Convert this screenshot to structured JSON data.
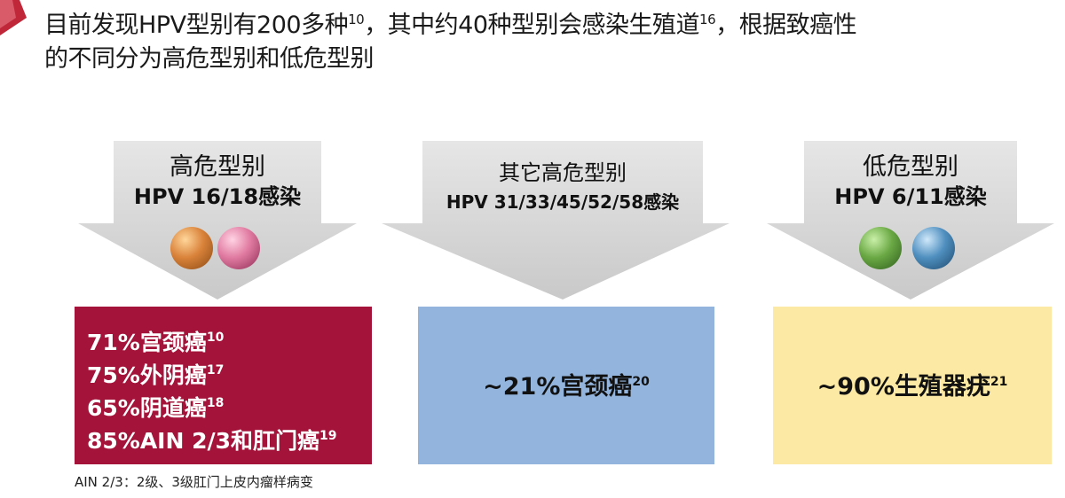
{
  "heading": {
    "line1_a": "目前发现HPV型别有200多种",
    "ref1": "10",
    "line1_b": "，其中约40种型别会感染生殖道",
    "ref2": "16",
    "line1_c": "，根据致癌性",
    "line2": "的不同分为高危型别和低危型别"
  },
  "columns": [
    {
      "title": "高危型别",
      "subtitle": "HPV 16/18感染",
      "virus_colors": [
        "#d9823a",
        "#e07aa0"
      ],
      "rows": [
        {
          "text": "71%宫颈癌",
          "ref": "10"
        },
        {
          "text": "75%外阴癌",
          "ref": "17"
        },
        {
          "text": "65%阴道癌",
          "ref": "18"
        },
        {
          "text": "85%AIN  2/3和肛门癌",
          "ref": "19"
        }
      ],
      "box_color": "#a3133a"
    },
    {
      "title": "其它高危型别",
      "subtitle": "HPV 31/33/45/52/58感染",
      "stat": "~21%宫颈癌",
      "ref": "20",
      "box_color": "#93b4dc"
    },
    {
      "title": "低危型别",
      "subtitle": "HPV 6/11感染",
      "virus_colors": [
        "#6aa844",
        "#4f8fbf"
      ],
      "stat": "~90%生殖器疣",
      "ref": "21",
      "box_color": "#fce9a3"
    }
  ],
  "footnote": "AIN 2/3：2级、3级肛门上皮内瘤样病变",
  "colors": {
    "arrow": "#d4d4d4",
    "accent": "#c0283a"
  }
}
